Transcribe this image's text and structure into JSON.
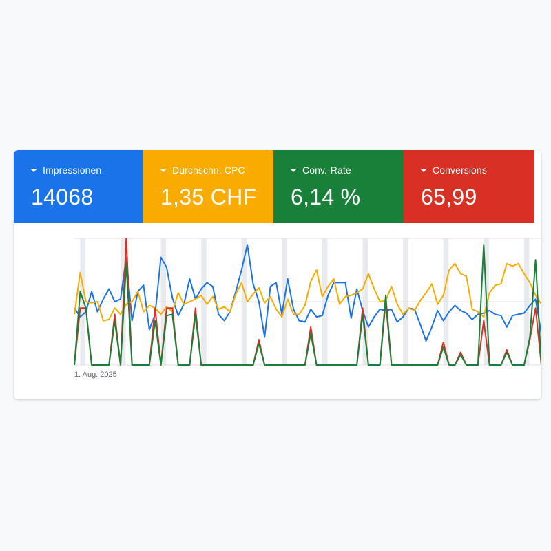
{
  "metrics": [
    {
      "label": "Impressionen",
      "value": "14068",
      "color": "#1a73e8"
    },
    {
      "label": "Durchschn. CPC",
      "value": "1,35 CHF",
      "color": "#f9ab00"
    },
    {
      "label": "Conv.-Rate",
      "value": "6,14 %",
      "color": "#188038"
    },
    {
      "label": "Conversions",
      "value": "65,99",
      "color": "#d93025"
    }
  ],
  "chart_data": {
    "type": "line",
    "x_start_label": "1. Aug. 2025",
    "grid": true,
    "weekend_bands": true,
    "series": [
      {
        "color": "#1a73e8",
        "values": [
          45,
          38,
          42,
          58,
          42,
          52,
          60,
          50,
          52,
          85,
          35,
          58,
          63,
          28,
          40,
          85,
          77,
          53,
          39,
          48,
          68,
          52,
          60,
          65,
          62,
          40,
          35,
          42,
          58,
          75,
          95,
          64,
          50,
          22,
          62,
          65,
          40,
          68,
          44,
          35,
          34,
          44,
          38,
          39,
          55,
          65,
          65,
          65,
          37,
          60,
          43,
          30,
          38,
          44,
          43,
          44,
          34,
          38,
          45,
          44,
          32,
          19,
          30,
          43,
          35,
          42,
          47,
          43,
          41,
          36,
          40,
          41,
          43,
          40,
          39,
          30,
          39,
          40,
          41,
          47,
          52,
          25
        ]
      },
      {
        "color": "#f9ab00",
        "values": [
          40,
          73,
          50,
          49,
          50,
          35,
          36,
          45,
          40,
          48,
          50,
          58,
          42,
          47,
          45,
          40,
          46,
          42,
          57,
          48,
          50,
          52,
          55,
          48,
          54,
          44,
          46,
          42,
          56,
          65,
          50,
          56,
          61,
          49,
          54,
          44,
          38,
          52,
          40,
          40,
          47,
          66,
          75,
          54,
          62,
          68,
          48,
          54,
          55,
          57,
          60,
          72,
          60,
          50,
          51,
          62,
          48,
          40,
          45,
          43,
          51,
          57,
          64,
          48,
          55,
          75,
          80,
          72,
          70,
          44,
          42,
          38,
          57,
          63,
          64,
          80,
          78,
          80,
          72,
          65,
          55,
          48
        ]
      },
      {
        "color": "#d93025",
        "values": [
          0,
          45,
          45,
          0,
          0,
          0,
          0,
          40,
          0,
          100,
          0,
          0,
          0,
          0,
          45,
          0,
          45,
          45,
          0,
          0,
          0,
          45,
          0,
          0,
          0,
          0,
          0,
          0,
          0,
          0,
          0,
          0,
          20,
          0,
          0,
          0,
          0,
          0,
          0,
          0,
          0,
          30,
          0,
          0,
          0,
          0,
          0,
          0,
          0,
          0,
          45,
          0,
          0,
          0,
          50,
          0,
          0,
          0,
          0,
          0,
          0,
          0,
          0,
          0,
          18,
          0,
          0,
          10,
          0,
          0,
          0,
          35,
          0,
          0,
          0,
          12,
          0,
          0,
          0,
          20,
          45,
          0
        ]
      },
      {
        "color": "#188038",
        "values": [
          0,
          58,
          45,
          0,
          0,
          0,
          0,
          35,
          0,
          80,
          0,
          0,
          0,
          0,
          35,
          0,
          39,
          40,
          0,
          0,
          0,
          40,
          0,
          0,
          0,
          0,
          0,
          0,
          0,
          0,
          0,
          0,
          17,
          0,
          0,
          0,
          0,
          0,
          0,
          0,
          0,
          25,
          0,
          0,
          0,
          0,
          0,
          0,
          0,
          0,
          40,
          0,
          0,
          0,
          55,
          0,
          0,
          0,
          0,
          0,
          0,
          0,
          0,
          0,
          14,
          0,
          0,
          8,
          0,
          0,
          0,
          95,
          0,
          0,
          0,
          10,
          0,
          0,
          0,
          22,
          83,
          0
        ]
      }
    ]
  }
}
